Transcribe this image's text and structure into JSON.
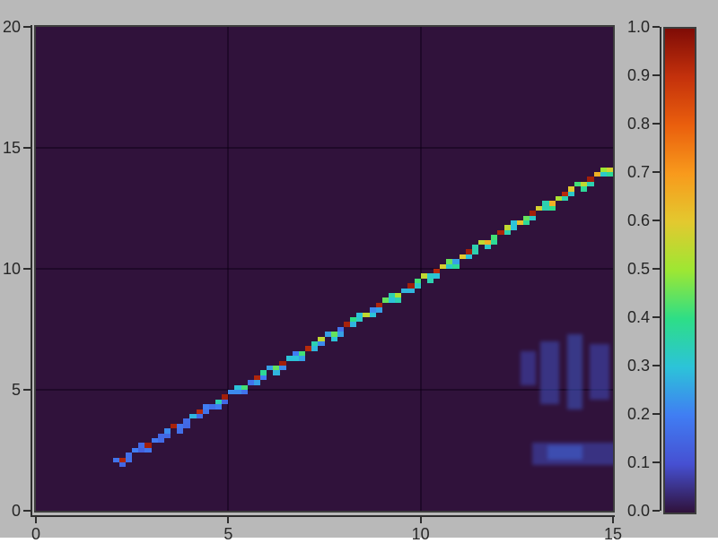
{
  "figure": {
    "background_color": "#b9b9b9",
    "plot_background_color": "#30123b",
    "axis_color": "#2e2e2e",
    "frame_color": "#3d3d3d",
    "grid_color": "rgba(10,0,20,0.45)"
  },
  "chart_data": {
    "type": "heatmap",
    "title": "",
    "xlabel": "",
    "ylabel": "",
    "xlim": [
      0,
      15
    ],
    "ylim": [
      0,
      20
    ],
    "x_ticks": [
      "0",
      "5",
      "10",
      "15"
    ],
    "x_tick_values": [
      0,
      5,
      10,
      15
    ],
    "y_ticks": [
      "0",
      "5",
      "10",
      "15",
      "20"
    ],
    "y_tick_values": [
      0,
      5,
      10,
      15,
      20
    ],
    "grid": true,
    "legend": "colorbar-right",
    "background_value": 0.0,
    "colormap": {
      "name": "turbo-like",
      "stops": [
        [
          0.0,
          "#30123b"
        ],
        [
          0.1,
          "#4650d2"
        ],
        [
          0.2,
          "#407df3"
        ],
        [
          0.3,
          "#2cc3d9"
        ],
        [
          0.4,
          "#2dde87"
        ],
        [
          0.5,
          "#9de733"
        ],
        [
          0.6,
          "#e3c92f"
        ],
        [
          0.7,
          "#f89a1c"
        ],
        [
          0.8,
          "#ea5f0d"
        ],
        [
          0.9,
          "#c4310c"
        ],
        [
          1.0,
          "#7f0c06"
        ]
      ]
    },
    "colorbar": {
      "min": 0.0,
      "max": 1.0,
      "tick_labels": [
        "0.0",
        "0.1",
        "0.2",
        "0.3",
        "0.4",
        "0.5",
        "0.6",
        "0.7",
        "0.8",
        "0.9",
        "1.0"
      ],
      "tick_values": [
        0.0,
        0.1,
        0.2,
        0.3,
        0.4,
        0.5,
        0.6,
        0.7,
        0.8,
        0.9,
        1.0
      ]
    },
    "diagonal_ridge": {
      "x_start": 2.0,
      "x_end": 15.0,
      "y_start": 2.0,
      "y_end": 14.35,
      "slope": 0.95,
      "x_step": 0.16667,
      "cell_w": 0.16667,
      "cell_h": 0.2,
      "values": [
        0.18,
        0.93,
        0.17,
        0.2,
        0.16,
        0.95,
        0.19,
        0.15,
        0.22,
        0.94,
        0.18,
        0.16,
        0.28,
        0.92,
        0.2,
        0.17,
        0.35,
        0.95,
        0.22,
        0.3,
        0.42,
        0.18,
        0.93,
        0.38,
        0.25,
        0.45,
        0.95,
        0.3,
        0.2,
        0.42,
        0.92,
        0.35,
        0.55,
        0.25,
        0.45,
        0.18,
        0.94,
        0.4,
        0.3,
        0.55,
        0.22,
        0.93,
        0.45,
        0.35,
        0.52,
        0.28,
        0.95,
        0.42,
        0.55,
        0.32,
        0.92,
        0.58,
        0.45,
        0.25,
        0.6,
        0.95,
        0.35,
        0.55,
        0.65,
        0.42,
        0.93,
        0.55,
        0.3,
        0.62,
        0.45,
        0.95,
        0.58,
        0.35,
        0.65,
        0.52,
        0.92,
        0.6,
        0.42,
        0.55,
        0.95,
        0.65,
        0.5,
        0.58
      ],
      "values_secondary": [
        null,
        0.15,
        0.17,
        null,
        0.14,
        0.18,
        null,
        0.16,
        0.15,
        null,
        0.17,
        0.15,
        null,
        0.16,
        0.18,
        null,
        0.2,
        0.15,
        null,
        0.22,
        0.18,
        null,
        0.25,
        0.2,
        null,
        0.28,
        0.22,
        null,
        0.3,
        0.25,
        null,
        0.28,
        0.22,
        null,
        0.3,
        0.25,
        null,
        0.28,
        0.32,
        null,
        0.3,
        0.25,
        null,
        0.3,
        0.35,
        null,
        0.28,
        0.32,
        null,
        0.35,
        0.3,
        null,
        0.32,
        0.38,
        null,
        0.3,
        0.35,
        null,
        0.32,
        0.38,
        null,
        0.35,
        0.3,
        null,
        0.38,
        0.32,
        null,
        0.35,
        0.4,
        null,
        0.35,
        0.32,
        null,
        0.38,
        0.35,
        null,
        0.32,
        0.38
      ]
    },
    "faint_patches": [
      {
        "x": 12.9,
        "y": 1.9,
        "w": 2.6,
        "h": 0.9,
        "value": 0.07
      },
      {
        "x": 13.3,
        "y": 2.1,
        "w": 0.9,
        "h": 0.6,
        "value": 0.12
      },
      {
        "x": 13.1,
        "y": 4.4,
        "w": 0.5,
        "h": 2.6,
        "value": 0.08
      },
      {
        "x": 13.8,
        "y": 4.2,
        "w": 0.4,
        "h": 3.1,
        "value": 0.1
      },
      {
        "x": 14.4,
        "y": 4.6,
        "w": 0.5,
        "h": 2.3,
        "value": 0.07
      },
      {
        "x": 12.6,
        "y": 5.2,
        "w": 0.4,
        "h": 1.4,
        "value": 0.06
      }
    ]
  }
}
